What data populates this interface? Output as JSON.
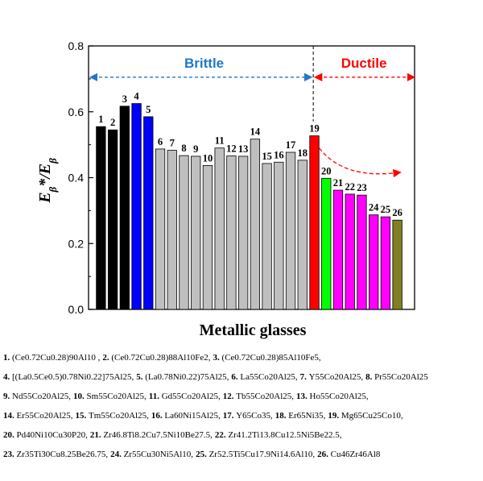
{
  "chart_data": {
    "type": "bar",
    "xlabel": "Metallic glasses",
    "ylabel_main": "E",
    "ylabel_sub1": "β",
    "ylabel_mid": "*/E",
    "ylabel_sub2": "β",
    "ylim": [
      0.0,
      0.8
    ],
    "yticks": [
      "0.0",
      "0.2",
      "0.4",
      "0.6",
      "0.8"
    ],
    "ytick_values": [
      0.0,
      0.2,
      0.4,
      0.6,
      0.8
    ],
    "regions": {
      "brittle": "Brittle",
      "ductile": "Ductile"
    },
    "colors": {
      "black": "#000000",
      "blue": "#0000ff",
      "gray": "#bfbfbf",
      "red": "#ff0000",
      "green": "#00ff00",
      "magenta": "#ff00ff",
      "olive": "#808020",
      "brittle_arrow": "#1f78c8",
      "ductile_arrow": "#ff0000"
    },
    "categories": [
      "1",
      "2",
      "3",
      "4",
      "5",
      "6",
      "7",
      "8",
      "9",
      "10",
      "11",
      "12",
      "13",
      "14",
      "15",
      "16",
      "17",
      "18",
      "19",
      "20",
      "21",
      "22",
      "23",
      "24",
      "25",
      "26"
    ],
    "values": [
      0.555,
      0.545,
      0.617,
      0.625,
      0.585,
      0.487,
      0.483,
      0.467,
      0.465,
      0.437,
      0.49,
      0.466,
      0.465,
      0.517,
      0.443,
      0.447,
      0.477,
      0.453,
      0.527,
      0.398,
      0.362,
      0.35,
      0.347,
      0.287,
      0.281,
      0.271
    ],
    "bar_colors": [
      "black",
      "black",
      "black",
      "blue",
      "blue",
      "gray",
      "gray",
      "gray",
      "gray",
      "gray",
      "gray",
      "gray",
      "gray",
      "gray",
      "gray",
      "gray",
      "gray",
      "gray",
      "red",
      "green",
      "magenta",
      "magenta",
      "magenta",
      "magenta",
      "magenta",
      "olive"
    ]
  },
  "legend_items": [
    {
      "num": "1.",
      "text": "(Ce0.72Cu0.28)90Al10 ,"
    },
    {
      "num": "2.",
      "text": "(Ce0.72Cu0.28)88Al10Fe2,"
    },
    {
      "num": "3.",
      "text": "(Ce0.72Cu0.28)85Al10Fe5,"
    },
    {
      "num": "4.",
      "text": "[(La0.5Ce0.5)0.78Ni0.22]75Al25,"
    },
    {
      "num": "5.",
      "text": "(La0.78Ni0.22)75Al25,"
    },
    {
      "num": "6.",
      "text": "La55Co20Al25,"
    },
    {
      "num": "7.",
      "text": "Y55Co20Al25,"
    },
    {
      "num": "8.",
      "text": "Pr55Co20Al25"
    },
    {
      "num": "9.",
      "text": "Nd55Co20Al25,"
    },
    {
      "num": "10.",
      "text": "Sm55Co20Al25,"
    },
    {
      "num": "11.",
      "text": "Gd55Co20Al25,"
    },
    {
      "num": "12.",
      "text": "Tb55Co20Al25,"
    },
    {
      "num": "13.",
      "text": "Ho55Co20Al25,"
    },
    {
      "num": "14.",
      "text": "Er55Co20Al25,"
    },
    {
      "num": "15.",
      "text": "Tm55Co20Al25,"
    },
    {
      "num": "16.",
      "text": "La60Ni15Al25,"
    },
    {
      "num": "17.",
      "text": "Y65Co35,"
    },
    {
      "num": "18.",
      "text": "Er65Ni35,"
    },
    {
      "num": "19.",
      "text": "Mg65Cu25Co10,"
    },
    {
      "num": "20.",
      "text": "Pd40Ni10Cu30P20,"
    },
    {
      "num": "21.",
      "text": "Zr46.8Ti8.2Cu7.5Ni10Be27.5,"
    },
    {
      "num": "22.",
      "text": "Zr41.2Ti13.8Cu12.5Ni5Be22.5,"
    },
    {
      "num": "23.",
      "text": "Zr35Ti30Cu8.25Be26.75,"
    },
    {
      "num": "24.",
      "text": "Zr55Cu30Ni5Al10,"
    },
    {
      "num": "25.",
      "text": "Zr52.5Ti5Cu17.9Ni14.6Al10,"
    },
    {
      "num": "26.",
      "text": "Cu46Zr46Al8"
    }
  ]
}
